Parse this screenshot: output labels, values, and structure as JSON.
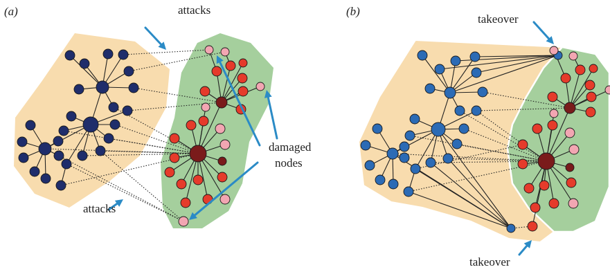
{
  "colors": {
    "region_a": "#f8dcae",
    "region_b": "#a5cf9d",
    "node_navy": "#1f2d6b",
    "node_blue": "#2c6bb5",
    "node_red": "#e53b2b",
    "node_pink": "#f2a6b2",
    "node_darkred": "#7a1b1b",
    "arrow": "#2b8bc6",
    "edge": "#222222"
  },
  "panels": [
    {
      "id": "a",
      "label": "(a)",
      "annotations": {
        "attacks_top": "attacks",
        "attacks_bottom": "attacks",
        "damaged_line1": "damaged",
        "damaged_line2": "nodes"
      }
    },
    {
      "id": "b",
      "label": "(b)",
      "annotations": {
        "takeover_top": "takeover",
        "takeover_bottom": "takeover"
      }
    }
  ]
}
